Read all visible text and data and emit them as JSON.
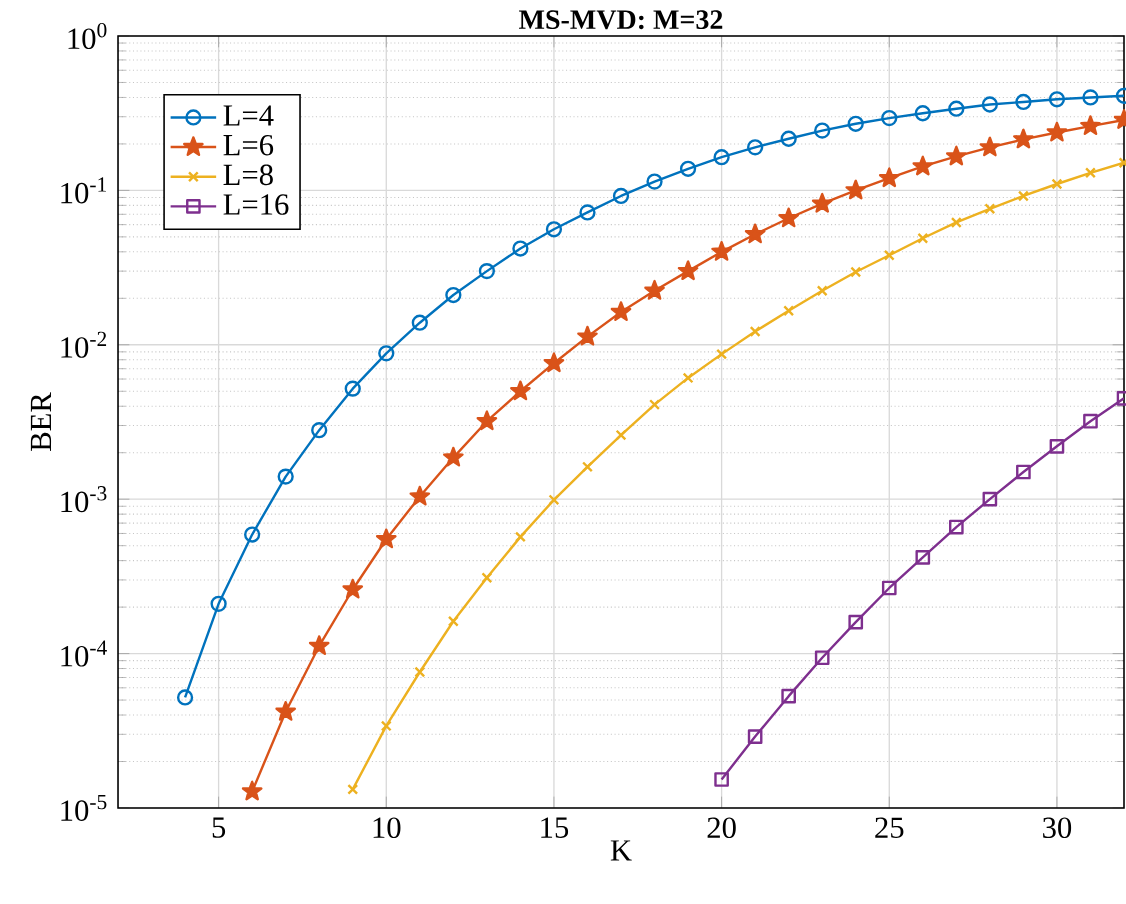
{
  "chart_data": {
    "type": "line",
    "title": "MS-MVD: M=32",
    "xlabel": "K",
    "ylabel": "BER",
    "xlim": [
      2,
      32
    ],
    "ylim": [
      1e-05,
      1
    ],
    "xticks": [
      5,
      10,
      15,
      20,
      25,
      30
    ],
    "yticks": [
      {
        "value": 1e-05,
        "label": "10$^{-5}$"
      },
      {
        "value": 0.0001,
        "label": "10$^{-4}$"
      },
      {
        "value": 0.001,
        "label": "10$^{-3}$"
      },
      {
        "value": 0.01,
        "label": "10$^{-2}$"
      },
      {
        "value": 0.1,
        "label": "10$^{-1}$"
      },
      {
        "value": 1,
        "label": "10$^{0}$"
      }
    ],
    "log": "y",
    "grid": true,
    "legend": "top left",
    "line_style": "solid",
    "series": [
      {
        "name": "L=4",
        "color": "#0072bd",
        "marker": "circle",
        "x": [
          4,
          5,
          6,
          7,
          8,
          9,
          10,
          11,
          12,
          13,
          14,
          15,
          16,
          17,
          18,
          19,
          20,
          21,
          22,
          23,
          24,
          25,
          26,
          27,
          28,
          29,
          30,
          31,
          32
        ],
        "values": [
          5.2e-05,
          0.00021,
          0.00059,
          0.0014,
          0.0028,
          0.0052,
          0.0088,
          0.0139,
          0.021,
          0.03,
          0.042,
          0.056,
          0.072,
          0.092,
          0.114,
          0.138,
          0.164,
          0.19,
          0.216,
          0.244,
          0.27,
          0.294,
          0.316,
          0.338,
          0.36,
          0.374,
          0.389,
          0.4,
          0.41
        ]
      },
      {
        "name": "L=6",
        "color": "#d95319",
        "marker": "star",
        "x": [
          6,
          7,
          8,
          9,
          10,
          11,
          12,
          13,
          14,
          15,
          16,
          17,
          18,
          19,
          20,
          21,
          22,
          23,
          24,
          25,
          26,
          27,
          28,
          29,
          30,
          31,
          32
        ],
        "values": [
          1.28e-05,
          4.2e-05,
          0.000112,
          0.00026,
          0.00055,
          0.00104,
          0.00186,
          0.0032,
          0.005,
          0.0076,
          0.0113,
          0.0163,
          0.0224,
          0.03,
          0.04,
          0.052,
          0.066,
          0.082,
          0.1,
          0.12,
          0.143,
          0.166,
          0.19,
          0.214,
          0.237,
          0.261,
          0.286
        ]
      },
      {
        "name": "L=8",
        "color": "#edb120",
        "marker": "cross",
        "x": [
          9,
          10,
          11,
          12,
          13,
          14,
          15,
          16,
          17,
          18,
          19,
          20,
          21,
          22,
          23,
          24,
          25,
          26,
          27,
          28,
          29,
          30,
          31,
          32
        ],
        "values": [
          1.32e-05,
          3.4e-05,
          7.6e-05,
          0.000162,
          0.00031,
          0.00057,
          0.00099,
          0.00162,
          0.0026,
          0.0041,
          0.0061,
          0.0087,
          0.0122,
          0.0166,
          0.0224,
          0.0296,
          0.038,
          0.049,
          0.062,
          0.076,
          0.092,
          0.11,
          0.13,
          0.151
        ]
      },
      {
        "name": "L=16",
        "color": "#7e2f8e",
        "marker": "square",
        "x": [
          20,
          21,
          22,
          23,
          24,
          25,
          26,
          27,
          28,
          29,
          30,
          31,
          32
        ],
        "values": [
          1.53e-05,
          2.9e-05,
          5.3e-05,
          9.4e-05,
          0.00016,
          0.000266,
          0.00042,
          0.00066,
          0.001,
          0.0015,
          0.0022,
          0.0032,
          0.0045
        ]
      }
    ]
  }
}
